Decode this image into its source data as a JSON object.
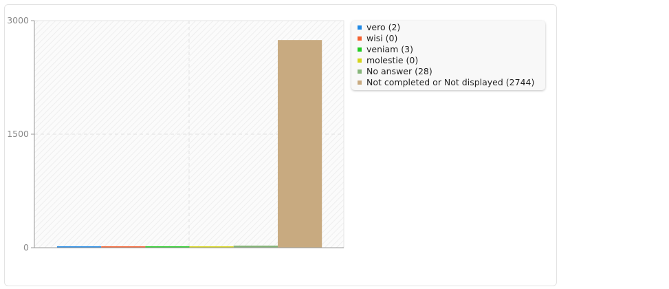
{
  "chart_data": {
    "type": "bar",
    "categories": [
      "vero",
      "wisi",
      "veniam",
      "molestie",
      "No answer",
      "Not completed or Not displayed"
    ],
    "values": [
      2,
      0,
      3,
      0,
      28,
      2744
    ],
    "legend_labels": [
      "vero (2)",
      "wisi (0)",
      "veniam (3)",
      "molestie (0)",
      "No answer (28)",
      "Not completed or Not displayed (2744)"
    ],
    "colors": [
      "#1e88e5",
      "#f4602e",
      "#22cc22",
      "#d4d41a",
      "#86b57a",
      "#c8aa80"
    ],
    "ylim": [
      0,
      3000
    ],
    "yticks": [
      "0",
      "1500",
      "3000"
    ],
    "grid": true,
    "legend_placement": "right"
  }
}
